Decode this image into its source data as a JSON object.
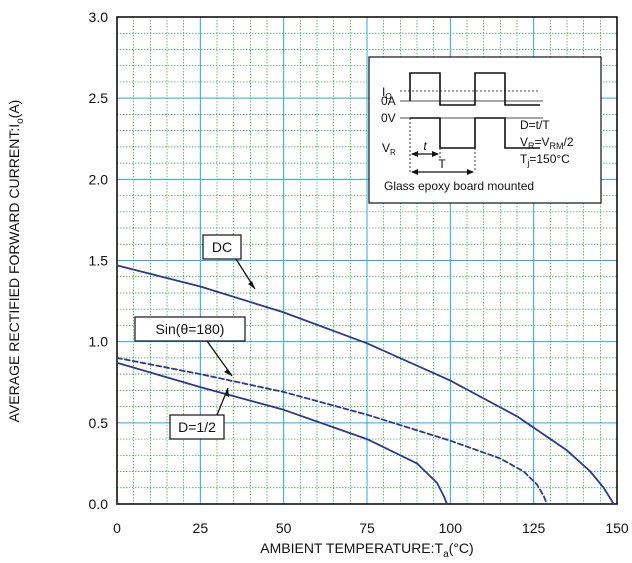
{
  "chart_data": {
    "type": "line",
    "xlabel": "AMBIENT TEMPERATURE:T",
    "xlabel_sub": "a",
    "xlabel_unit": "(°C)",
    "ylabel": "AVERAGE RECTIFIED FORWARD CURRENT:I",
    "ylabel_sub": "o",
    "ylabel_unit": "(A)",
    "xlim": [
      0,
      150
    ],
    "ylim": [
      0,
      3.0
    ],
    "x_ticks": [
      "0",
      "25",
      "50",
      "75",
      "100",
      "125",
      "150"
    ],
    "y_ticks": [
      "0.0",
      "0.5",
      "1.0",
      "1.5",
      "2.0",
      "2.5",
      "3.0"
    ],
    "grid": true,
    "series": [
      {
        "name": "DC",
        "color": "#2b3990",
        "dashed": false,
        "points": [
          [
            0,
            1.47
          ],
          [
            25,
            1.34
          ],
          [
            50,
            1.18
          ],
          [
            75,
            0.99
          ],
          [
            100,
            0.76
          ],
          [
            120,
            0.54
          ],
          [
            135,
            0.33
          ],
          [
            142,
            0.2
          ],
          [
            146,
            0.1
          ],
          [
            149,
            0.0
          ]
        ]
      },
      {
        "name": "Sin(θ=180)",
        "color": "#2b3990",
        "dashed": true,
        "points": [
          [
            0,
            0.9
          ],
          [
            25,
            0.8
          ],
          [
            50,
            0.69
          ],
          [
            75,
            0.55
          ],
          [
            100,
            0.39
          ],
          [
            115,
            0.28
          ],
          [
            122,
            0.2
          ],
          [
            126,
            0.12
          ],
          [
            128,
            0.05
          ],
          [
            129,
            0.0
          ]
        ]
      },
      {
        "name": "D=1/2",
        "color": "#2b3990",
        "dashed": false,
        "points": [
          [
            0,
            0.87
          ],
          [
            25,
            0.72
          ],
          [
            50,
            0.58
          ],
          [
            75,
            0.4
          ],
          [
            90,
            0.25
          ],
          [
            96,
            0.13
          ],
          [
            98,
            0.05
          ],
          [
            99,
            0.0
          ]
        ]
      }
    ],
    "callouts": [
      {
        "label": "DC",
        "x": 30,
        "y": 1.28
      },
      {
        "label": "Sin(θ=180)",
        "x": 35,
        "y": 0.77
      },
      {
        "label": "D=1/2",
        "x": 30,
        "y": 0.68
      }
    ],
    "inset": {
      "io": "I",
      "io_sub": "O",
      "zero_a": "0A",
      "zero_v": "0V",
      "vr": "V",
      "vr_sub": "R",
      "t_small": "t",
      "t_big": "T",
      "d_eq": "D=t/T",
      "vr_eq_a": "V",
      "vr_eq_sub1": "R",
      "vr_eq_b": "=V",
      "vr_eq_sub2": "RM",
      "vr_eq_c": "/2",
      "tj_a": "T",
      "tj_sub": "j",
      "tj_b": "=150°C",
      "caption": "Glass epoxy board mounted"
    }
  }
}
